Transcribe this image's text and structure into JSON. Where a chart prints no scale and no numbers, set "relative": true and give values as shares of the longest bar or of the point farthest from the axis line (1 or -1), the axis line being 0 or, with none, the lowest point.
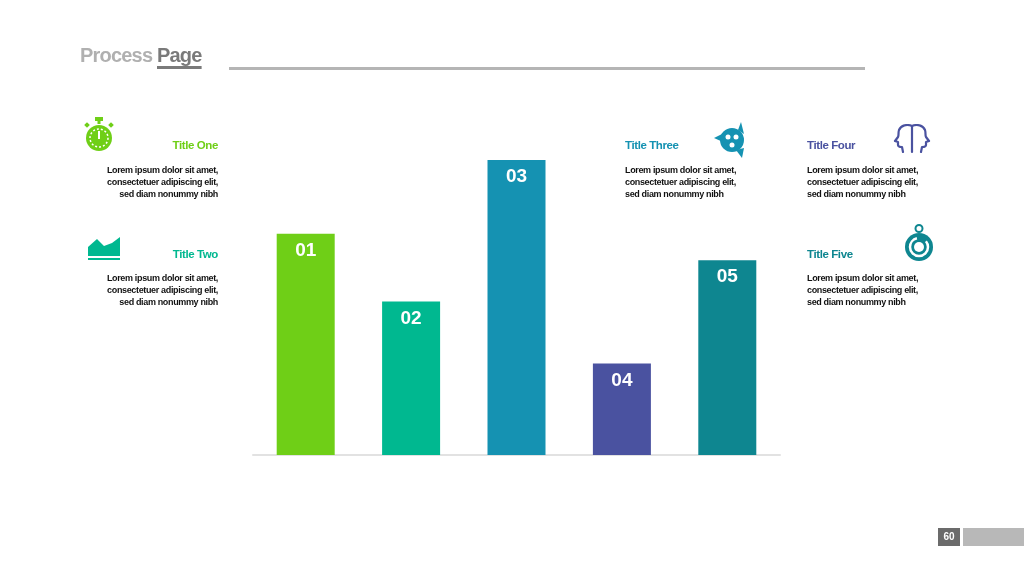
{
  "chart_data": {
    "type": "bar",
    "title": "Process Page",
    "relative": true,
    "tick_labels": false,
    "categories": [
      "01",
      "02",
      "03",
      "04",
      "05"
    ],
    "values": [
      0.75,
      0.52,
      1,
      0.31,
      0.66
    ],
    "colors": [
      "#6fcf17",
      "#00b890",
      "#1592b2",
      "#4a52a0",
      "#0e8690"
    ],
    "annotations": [
      "Title One",
      "Lorem ipsum dolor sit amet,\nconsectetuer adipiscing elit,\nsed diam nonummy nibh",
      "Title Two",
      "Lorem ipsum dolor sit amet,\nconsectetuer adipiscing elit,\nsed diam nonummy nibh",
      "Title Three",
      "Lorem ipsum dolor sit amet,\nconsectetuer adipiscing elit,\nsed diam nonummy nibh",
      "Title Four",
      "Lorem ipsum dolor sit amet,\nconsectetuer adipiscing elit,\nsed diam nonummy nibh",
      "Title Five",
      "Lorem ipsum dolor sit amet,\nconsectetuer adipiscing elit,\nsed diam nonummy nibh",
      "60"
    ]
  }
}
